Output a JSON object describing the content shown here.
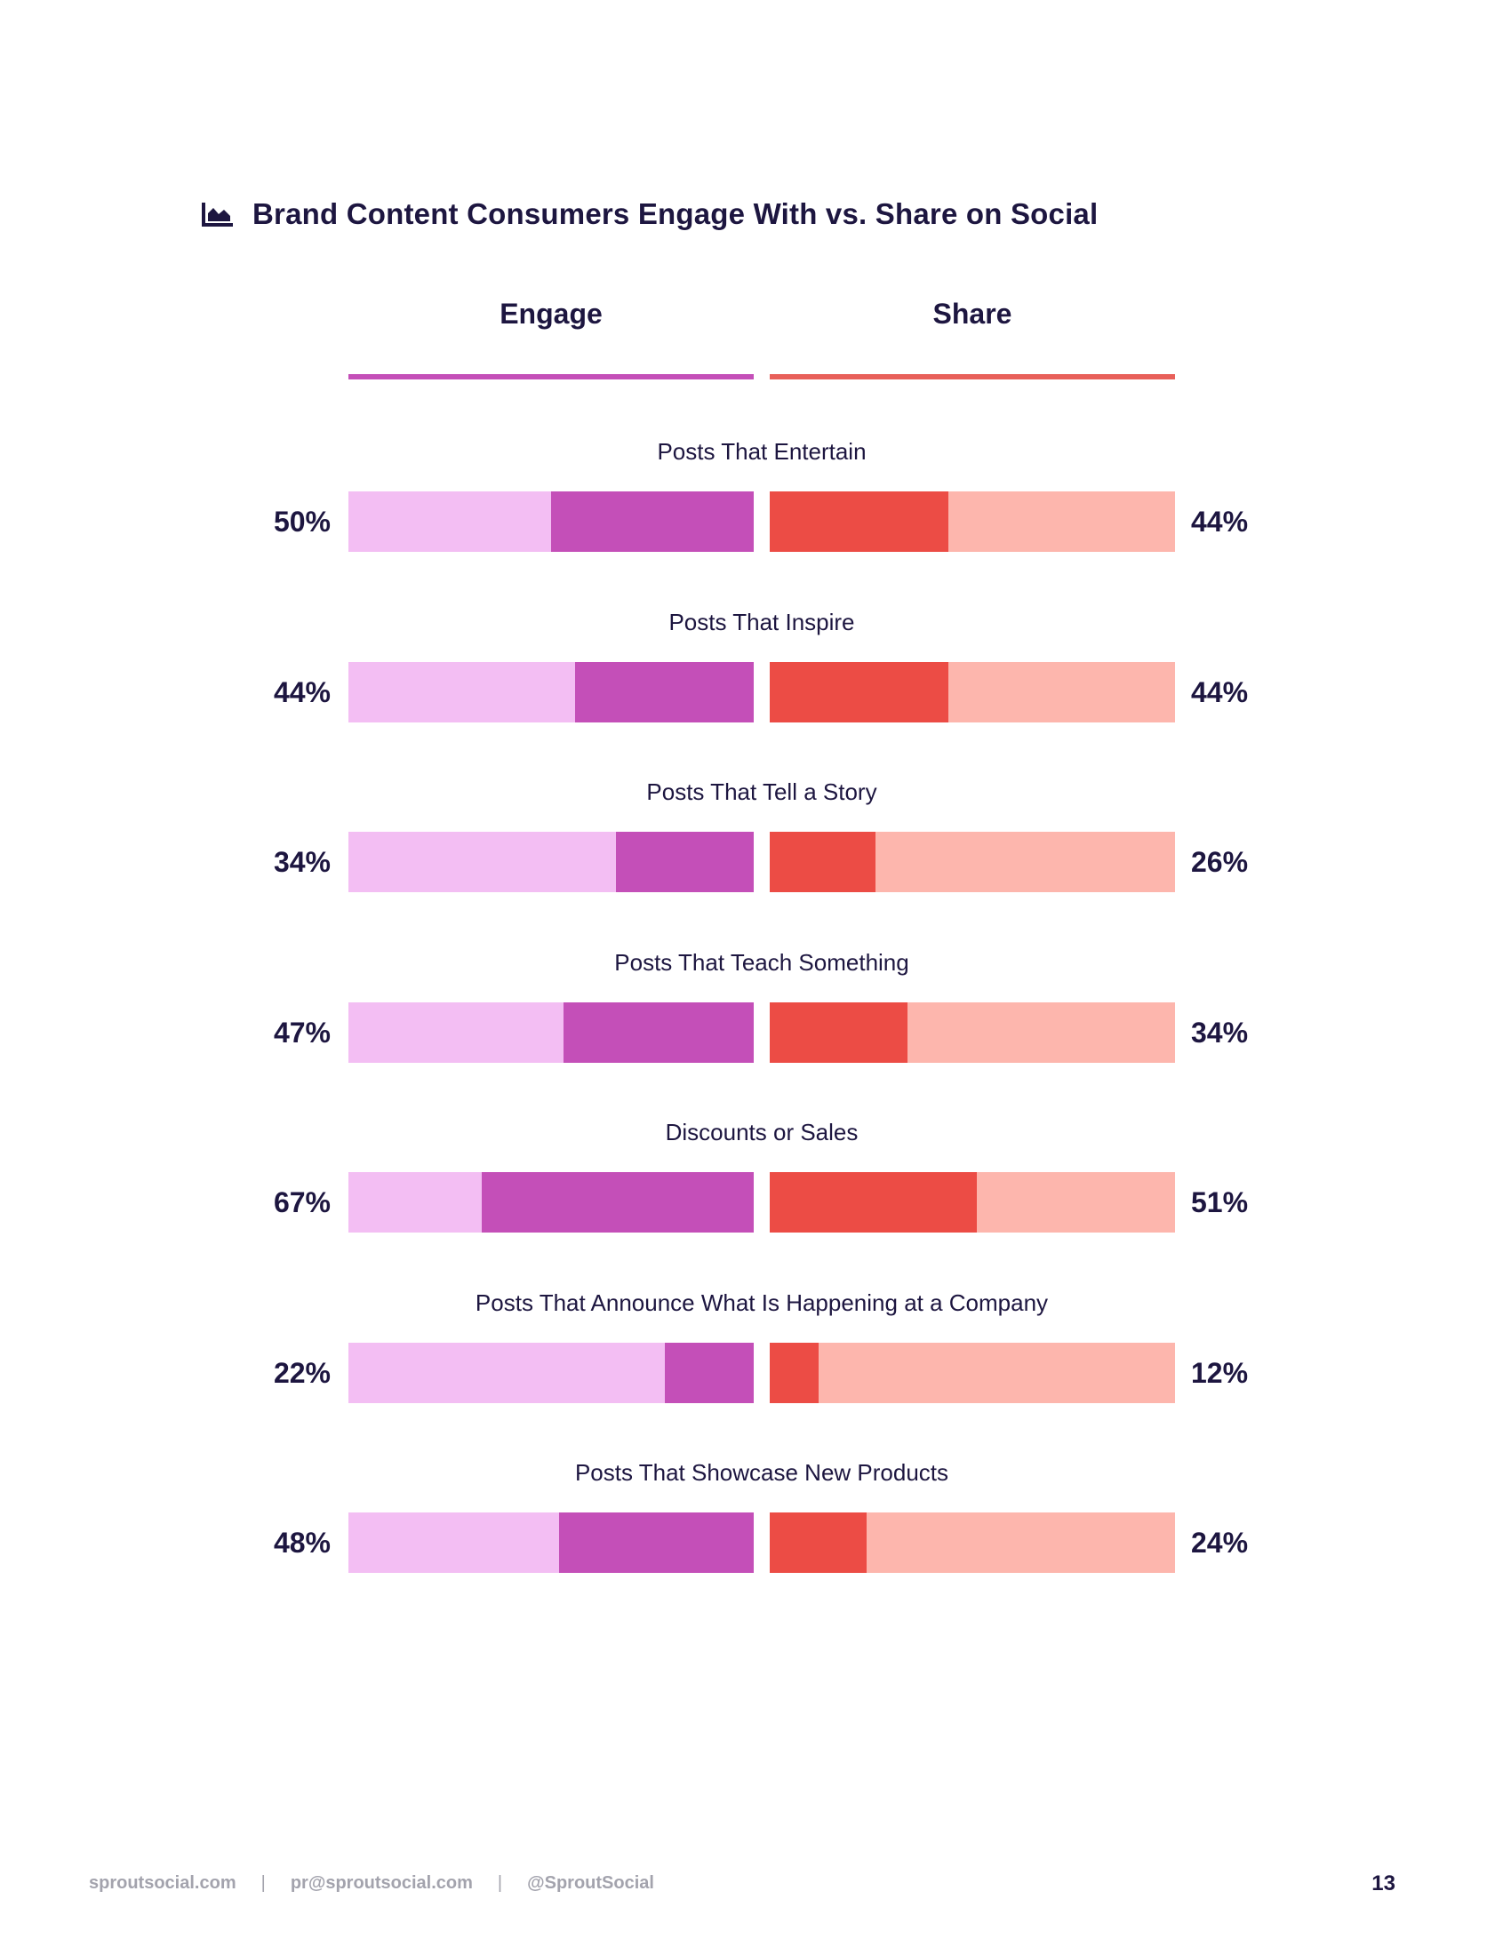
{
  "title": "Brand Content Consumers Engage With vs. Share on Social",
  "colors": {
    "engage_light": "#f3bef3",
    "engage_dark": "#c44fb8",
    "share_dark": "#ec4c45",
    "share_light": "#fdb6ad",
    "engage_line": "#c44fb8",
    "share_line": "#e8605a"
  },
  "chart_data": {
    "type": "bar",
    "title": "Brand Content Consumers Engage With vs. Share on Social",
    "orientation": "diverging-horizontal",
    "categories": [
      "Posts That Entertain",
      "Posts That Inspire",
      "Posts That Tell a Story",
      "Posts That Teach Something",
      "Discounts or Sales",
      "Posts That Announce What Is Happening at a Company",
      "Posts That Showcase New Products"
    ],
    "series": [
      {
        "name": "Engage",
        "values": [
          50,
          44,
          34,
          47,
          67,
          22,
          48
        ],
        "labels": [
          "50%",
          "44%",
          "34%",
          "47%",
          "67%",
          "22%",
          "48%"
        ]
      },
      {
        "name": "Share",
        "values": [
          44,
          44,
          26,
          34,
          51,
          12,
          24
        ],
        "labels": [
          "44%",
          "44%",
          "26%",
          "34%",
          "51%",
          "12%",
          "24%"
        ]
      }
    ],
    "xlim": [
      0,
      100
    ],
    "unit": "%"
  },
  "footer": {
    "website": "sproutsocial.com",
    "separator": "|",
    "email": "pr@sproutsocial.com",
    "handle": "@SproutSocial",
    "page_number": "13"
  }
}
